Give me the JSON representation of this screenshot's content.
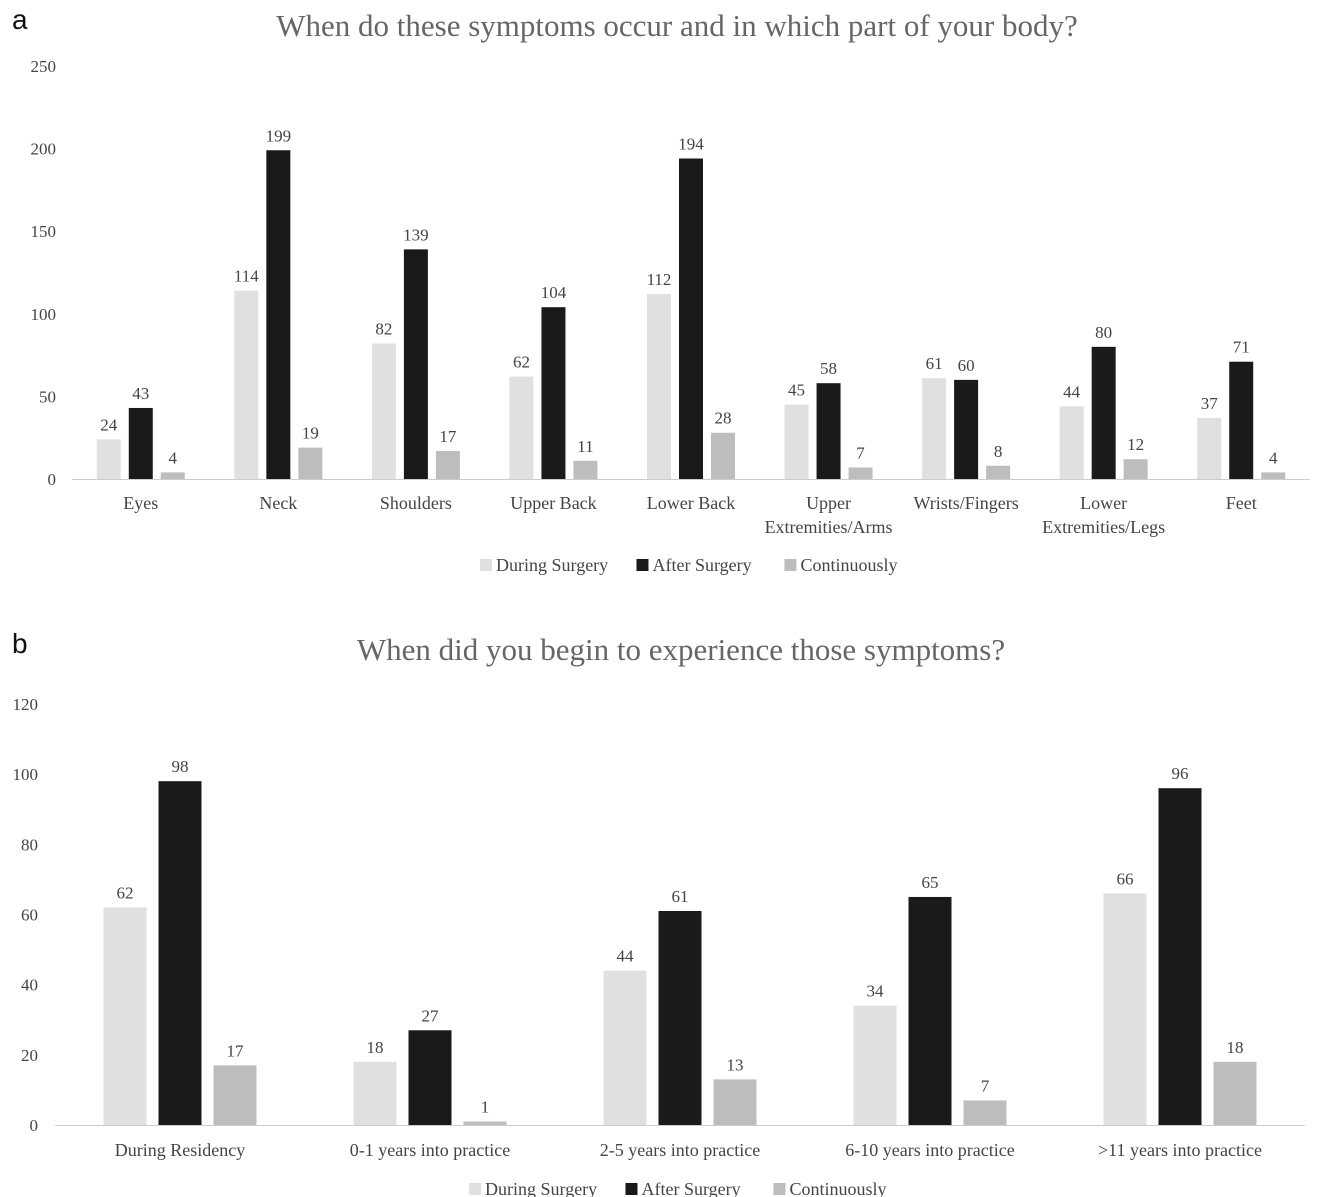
{
  "panels": {
    "a": {
      "letter": "a"
    },
    "b": {
      "letter": "b"
    }
  },
  "colors": {
    "during": "#e0e0e0",
    "after": "#1a1a1a",
    "continuously": "#bdbdbd",
    "axis": "#cccccc",
    "text": "#444444"
  },
  "chart_data": [
    {
      "type": "bar",
      "title": "When do these symptoms occur and in which part of your body?",
      "categories": [
        "Eyes",
        "Neck",
        "Shoulders",
        "Upper Back",
        "Lower Back",
        "Upper Extremities/Arms",
        "Wrists/Fingers",
        "Lower Extremities/Legs",
        "Feet"
      ],
      "category_lines": [
        [
          "Eyes"
        ],
        [
          "Neck"
        ],
        [
          "Shoulders"
        ],
        [
          "Upper Back"
        ],
        [
          "Lower Back"
        ],
        [
          "Upper",
          "Extremities/Arms"
        ],
        [
          "Wrists/Fingers"
        ],
        [
          "Lower",
          "Extremities/Legs"
        ],
        [
          "Feet"
        ]
      ],
      "series": [
        {
          "name": "During Surgery",
          "values": [
            24,
            114,
            82,
            62,
            112,
            45,
            61,
            44,
            37
          ]
        },
        {
          "name": "After Surgery",
          "values": [
            43,
            199,
            139,
            104,
            194,
            58,
            60,
            80,
            71
          ]
        },
        {
          "name": "Continuously",
          "values": [
            4,
            19,
            17,
            11,
            28,
            7,
            8,
            12,
            4
          ]
        }
      ],
      "ylim": [
        0,
        250
      ],
      "yticks": [
        0,
        50,
        100,
        150,
        200,
        250
      ],
      "grid": false,
      "legend": "bottom",
      "data_labels": true
    },
    {
      "type": "bar",
      "title": "When did you begin to experience those symptoms?",
      "categories": [
        "During Residency",
        "0-1 years into practice",
        "2-5 years into practice",
        "6-10 years into practice",
        ">11 years into practice"
      ],
      "category_lines": [
        [
          "During Residency"
        ],
        [
          "0-1 years into practice"
        ],
        [
          "2-5 years into practice"
        ],
        [
          "6-10 years into practice"
        ],
        [
          ">11 years into practice"
        ]
      ],
      "series": [
        {
          "name": "During Surgery",
          "values": [
            62,
            18,
            44,
            34,
            66
          ]
        },
        {
          "name": "After Surgery",
          "values": [
            98,
            27,
            61,
            65,
            96
          ]
        },
        {
          "name": "Continuously",
          "values": [
            17,
            1,
            13,
            7,
            18
          ]
        }
      ],
      "ylim": [
        0,
        120
      ],
      "yticks": [
        0,
        20,
        40,
        60,
        80,
        100,
        120
      ],
      "grid": false,
      "legend": "bottom",
      "data_labels": true
    }
  ]
}
